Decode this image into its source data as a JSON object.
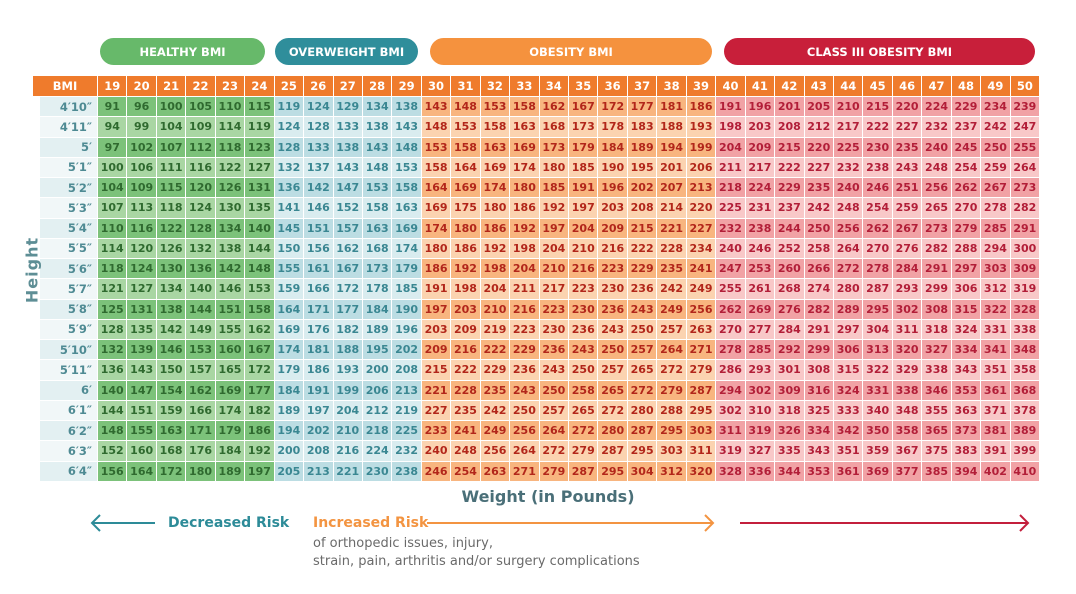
{
  "header": {
    "pills": [
      "HEALTHY BMI",
      "OVERWEIGHT BMI",
      "OBESITY BMI",
      "CLASS III OBESITY BMI"
    ]
  },
  "table": {
    "corner": "BMI",
    "row_axis_label": "Height",
    "bmi": [
      19,
      20,
      21,
      22,
      23,
      24,
      25,
      26,
      27,
      28,
      29,
      30,
      31,
      32,
      33,
      34,
      35,
      36,
      37,
      38,
      39,
      40,
      41,
      42,
      43,
      44,
      45,
      46,
      47,
      48,
      49,
      50
    ],
    "rows": [
      {
        "height": "4′10″",
        "weights": [
          91,
          96,
          100,
          105,
          110,
          115,
          119,
          124,
          129,
          134,
          138,
          143,
          148,
          153,
          158,
          162,
          167,
          172,
          177,
          181,
          186,
          191,
          196,
          201,
          205,
          210,
          215,
          220,
          224,
          229,
          234,
          239
        ]
      },
      {
        "height": "4′11″",
        "weights": [
          94,
          99,
          104,
          109,
          114,
          119,
          124,
          128,
          133,
          138,
          143,
          148,
          153,
          158,
          163,
          168,
          173,
          178,
          183,
          188,
          193,
          198,
          203,
          208,
          212,
          217,
          222,
          227,
          232,
          237,
          242,
          247
        ]
      },
      {
        "height": "5′",
        "weights": [
          97,
          102,
          107,
          112,
          118,
          123,
          128,
          133,
          138,
          143,
          148,
          153,
          158,
          163,
          169,
          173,
          179,
          184,
          189,
          194,
          199,
          204,
          209,
          215,
          220,
          225,
          230,
          235,
          240,
          245,
          250,
          255
        ]
      },
      {
        "height": "5′1″",
        "weights": [
          100,
          106,
          111,
          116,
          122,
          127,
          132,
          137,
          143,
          148,
          153,
          158,
          164,
          169,
          174,
          180,
          185,
          190,
          195,
          201,
          206,
          211,
          217,
          222,
          227,
          232,
          238,
          243,
          248,
          254,
          259,
          264
        ]
      },
      {
        "height": "5′2″",
        "weights": [
          104,
          109,
          115,
          120,
          126,
          131,
          136,
          142,
          147,
          153,
          158,
          164,
          169,
          174,
          180,
          185,
          191,
          196,
          202,
          207,
          213,
          218,
          224,
          229,
          235,
          240,
          246,
          251,
          256,
          262,
          267,
          273
        ]
      },
      {
        "height": "5′3″",
        "weights": [
          107,
          113,
          118,
          124,
          130,
          135,
          141,
          146,
          152,
          158,
          163,
          169,
          175,
          180,
          186,
          192,
          197,
          203,
          208,
          214,
          220,
          225,
          231,
          237,
          242,
          248,
          254,
          259,
          265,
          270,
          278,
          282
        ]
      },
      {
        "height": "5′4″",
        "weights": [
          110,
          116,
          122,
          128,
          134,
          140,
          145,
          151,
          157,
          163,
          169,
          174,
          180,
          186,
          192,
          197,
          204,
          209,
          215,
          221,
          227,
          232,
          238,
          244,
          250,
          256,
          262,
          267,
          273,
          279,
          285,
          291
        ]
      },
      {
        "height": "5′5″",
        "weights": [
          114,
          120,
          126,
          132,
          138,
          144,
          150,
          156,
          162,
          168,
          174,
          180,
          186,
          192,
          198,
          204,
          210,
          216,
          222,
          228,
          234,
          240,
          246,
          252,
          258,
          264,
          270,
          276,
          282,
          288,
          294,
          300
        ]
      },
      {
        "height": "5′6″",
        "weights": [
          118,
          124,
          130,
          136,
          142,
          148,
          155,
          161,
          167,
          173,
          179,
          186,
          192,
          198,
          204,
          210,
          216,
          223,
          229,
          235,
          241,
          247,
          253,
          260,
          266,
          272,
          278,
          284,
          291,
          297,
          303,
          309
        ]
      },
      {
        "height": "5′7″",
        "weights": [
          121,
          127,
          134,
          140,
          146,
          153,
          159,
          166,
          172,
          178,
          185,
          191,
          198,
          204,
          211,
          217,
          223,
          230,
          236,
          242,
          249,
          255,
          261,
          268,
          274,
          280,
          287,
          293,
          299,
          306,
          312,
          319
        ]
      },
      {
        "height": "5′8″",
        "weights": [
          125,
          131,
          138,
          144,
          151,
          158,
          164,
          171,
          177,
          184,
          190,
          197,
          203,
          210,
          216,
          223,
          230,
          236,
          243,
          249,
          256,
          262,
          269,
          276,
          282,
          289,
          295,
          302,
          308,
          315,
          322,
          328
        ]
      },
      {
        "height": "5′9″",
        "weights": [
          128,
          135,
          142,
          149,
          155,
          162,
          169,
          176,
          182,
          189,
          196,
          203,
          209,
          219,
          223,
          230,
          236,
          243,
          250,
          257,
          263,
          270,
          277,
          284,
          291,
          297,
          304,
          311,
          318,
          324,
          331,
          338
        ]
      },
      {
        "height": "5′10″",
        "weights": [
          132,
          139,
          146,
          153,
          160,
          167,
          174,
          181,
          188,
          195,
          202,
          209,
          216,
          222,
          229,
          236,
          243,
          250,
          257,
          264,
          271,
          278,
          285,
          292,
          299,
          306,
          313,
          320,
          327,
          334,
          341,
          348
        ]
      },
      {
        "height": "5′11″",
        "weights": [
          136,
          143,
          150,
          157,
          165,
          172,
          179,
          186,
          193,
          200,
          208,
          215,
          222,
          229,
          236,
          243,
          250,
          257,
          265,
          272,
          279,
          286,
          293,
          301,
          308,
          315,
          322,
          329,
          338,
          343,
          351,
          358
        ]
      },
      {
        "height": "6′",
        "weights": [
          140,
          147,
          154,
          162,
          169,
          177,
          184,
          191,
          199,
          206,
          213,
          221,
          228,
          235,
          243,
          250,
          258,
          265,
          272,
          279,
          287,
          294,
          302,
          309,
          316,
          324,
          331,
          338,
          346,
          353,
          361,
          368
        ]
      },
      {
        "height": "6′1″",
        "weights": [
          144,
          151,
          159,
          166,
          174,
          182,
          189,
          197,
          204,
          212,
          219,
          227,
          235,
          242,
          250,
          257,
          265,
          272,
          280,
          288,
          295,
          302,
          310,
          318,
          325,
          333,
          340,
          348,
          355,
          363,
          371,
          378
        ]
      },
      {
        "height": "6′2″",
        "weights": [
          148,
          155,
          163,
          171,
          179,
          186,
          194,
          202,
          210,
          218,
          225,
          233,
          241,
          249,
          256,
          264,
          272,
          280,
          287,
          295,
          303,
          311,
          319,
          326,
          334,
          342,
          350,
          358,
          365,
          373,
          381,
          389
        ]
      },
      {
        "height": "6′3″",
        "weights": [
          152,
          160,
          168,
          176,
          184,
          192,
          200,
          208,
          216,
          224,
          232,
          240,
          248,
          256,
          264,
          272,
          279,
          287,
          295,
          303,
          311,
          319,
          327,
          335,
          343,
          351,
          359,
          367,
          375,
          383,
          391,
          399
        ]
      },
      {
        "height": "6′4″",
        "weights": [
          156,
          164,
          172,
          180,
          189,
          197,
          205,
          213,
          221,
          230,
          238,
          246,
          254,
          263,
          271,
          279,
          287,
          295,
          304,
          312,
          320,
          328,
          336,
          344,
          353,
          361,
          369,
          377,
          385,
          394,
          402,
          410
        ]
      }
    ]
  },
  "footer": {
    "x_axis_label": "Weight (in Pounds)",
    "decreased": "Decreased Risk",
    "increased": "Increased Risk",
    "note_lines": [
      "of orthopedic issues, injury,",
      "strain, pain, arthritis and/or surgery complications"
    ]
  }
}
